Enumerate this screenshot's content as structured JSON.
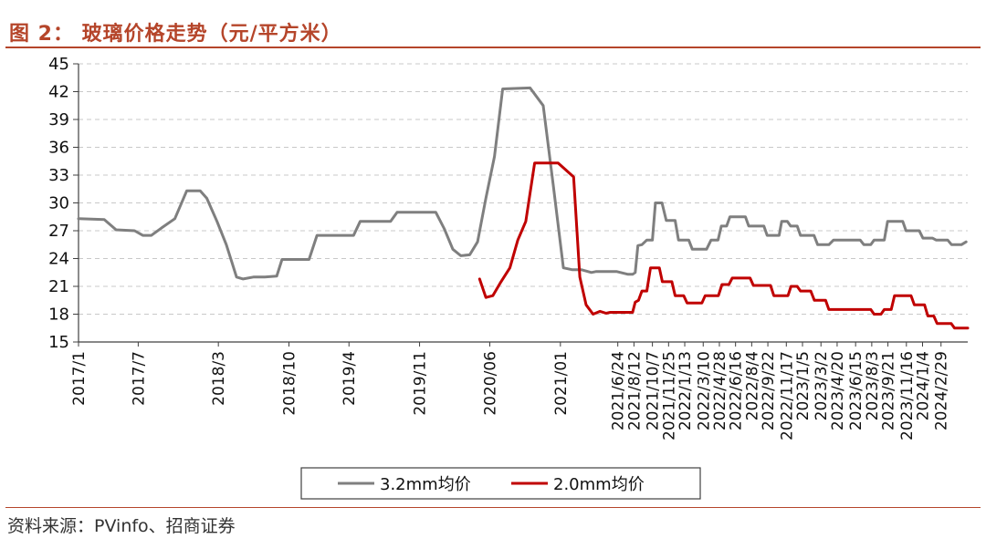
{
  "figure": {
    "title": "图 2：  玻璃价格走势（元/平方米）",
    "source": "资料来源：PVinfo、招商证券"
  },
  "colors": {
    "accent": "#b5452a",
    "series_gray": "#7f7f7f",
    "series_red": "#c00000",
    "grid": "#c8c8c8"
  },
  "chart_data": {
    "type": "line",
    "title": "玻璃价格走势（元/平方米）",
    "xlabel": "",
    "ylabel": "",
    "ylim": [
      15,
      45
    ],
    "yticks": [
      15,
      18,
      21,
      24,
      27,
      30,
      33,
      36,
      39,
      42,
      45
    ],
    "xlim": [
      "2017-01-01",
      "2024-05-20"
    ],
    "grid": "horizontal dashed",
    "legend_position": "bottom-center",
    "x_tick_labels": [
      {
        "label": "2017/1",
        "date": "2017-01-01"
      },
      {
        "label": "2017/7",
        "date": "2017-07-01"
      },
      {
        "label": "2018/3",
        "date": "2018-03-01"
      },
      {
        "label": "2018/10",
        "date": "2018-10-01"
      },
      {
        "label": "2019/4",
        "date": "2019-04-01"
      },
      {
        "label": "2019/11",
        "date": "2019-11-01"
      },
      {
        "label": "2020/06",
        "date": "2020-06-01"
      },
      {
        "label": "2021/01",
        "date": "2021-01-01"
      },
      {
        "label": "2021/6/24",
        "date": "2021-06-24"
      },
      {
        "label": "2021/8/12",
        "date": "2021-08-12"
      },
      {
        "label": "2021/10/7",
        "date": "2021-10-07"
      },
      {
        "label": "2021/11/25",
        "date": "2021-11-25"
      },
      {
        "label": "2022/1/13",
        "date": "2022-01-13"
      },
      {
        "label": "2022/3/10",
        "date": "2022-03-10"
      },
      {
        "label": "2022/4/28",
        "date": "2022-04-28"
      },
      {
        "label": "2022/6/16",
        "date": "2022-06-16"
      },
      {
        "label": "2022/8/4",
        "date": "2022-08-04"
      },
      {
        "label": "2022/9/22",
        "date": "2022-09-22"
      },
      {
        "label": "2022/11/17",
        "date": "2022-11-17"
      },
      {
        "label": "2023/1/5",
        "date": "2023-01-05"
      },
      {
        "label": "2023/3/2",
        "date": "2023-03-02"
      },
      {
        "label": "2023/4/20",
        "date": "2023-04-20"
      },
      {
        "label": "2023/6/15",
        "date": "2023-06-15"
      },
      {
        "label": "2023/8/3",
        "date": "2023-08-03"
      },
      {
        "label": "2023/9/21",
        "date": "2023-09-21"
      },
      {
        "label": "2023/11/16",
        "date": "2023-11-16"
      },
      {
        "label": "2024/1/4",
        "date": "2024-01-04"
      },
      {
        "label": "2024/2/29",
        "date": "2024-02-29"
      }
    ],
    "series": [
      {
        "name": "3.2mm均价",
        "color": "#7f7f7f",
        "points": [
          [
            "2017-01-01",
            28.3
          ],
          [
            "2017-03-20",
            28.2
          ],
          [
            "2017-04-25",
            27.1
          ],
          [
            "2017-06-20",
            27.0
          ],
          [
            "2017-07-15",
            26.5
          ],
          [
            "2017-08-10",
            26.5
          ],
          [
            "2017-09-10",
            27.3
          ],
          [
            "2017-10-20",
            28.3
          ],
          [
            "2017-11-25",
            31.3
          ],
          [
            "2018-01-05",
            31.3
          ],
          [
            "2018-01-25",
            30.5
          ],
          [
            "2018-02-25",
            28.0
          ],
          [
            "2018-03-25",
            25.5
          ],
          [
            "2018-04-25",
            22.0
          ],
          [
            "2018-05-15",
            21.8
          ],
          [
            "2018-06-15",
            22.0
          ],
          [
            "2018-07-20",
            22.0
          ],
          [
            "2018-08-25",
            22.1
          ],
          [
            "2018-09-10",
            23.9
          ],
          [
            "2018-12-01",
            23.9
          ],
          [
            "2018-12-25",
            26.5
          ],
          [
            "2019-04-15",
            26.5
          ],
          [
            "2019-05-05",
            28.0
          ],
          [
            "2019-08-05",
            28.0
          ],
          [
            "2019-08-25",
            29.0
          ],
          [
            "2019-12-20",
            29.0
          ],
          [
            "2020-01-15",
            27.2
          ],
          [
            "2020-02-10",
            25.0
          ],
          [
            "2020-03-05",
            24.3
          ],
          [
            "2020-04-01",
            24.4
          ],
          [
            "2020-04-25",
            25.8
          ],
          [
            "2020-05-20",
            30.5
          ],
          [
            "2020-06-15",
            35.0
          ],
          [
            "2020-07-10",
            42.3
          ],
          [
            "2020-10-01",
            42.4
          ],
          [
            "2020-11-10",
            40.5
          ],
          [
            "2020-12-10",
            32.0
          ],
          [
            "2021-01-10",
            23.0
          ],
          [
            "2021-02-05",
            22.8
          ],
          [
            "2021-03-05",
            22.8
          ],
          [
            "2021-04-05",
            22.5
          ],
          [
            "2021-04-20",
            22.6
          ],
          [
            "2021-06-20",
            22.6
          ],
          [
            "2021-07-25",
            22.3
          ],
          [
            "2021-08-08",
            22.3
          ],
          [
            "2021-08-16",
            22.5
          ],
          [
            "2021-08-24",
            25.4
          ],
          [
            "2021-09-05",
            25.5
          ],
          [
            "2021-09-20",
            26.0
          ],
          [
            "2021-10-07",
            26.0
          ],
          [
            "2021-10-16",
            30.0
          ],
          [
            "2021-11-05",
            30.0
          ],
          [
            "2021-11-18",
            28.1
          ],
          [
            "2021-12-15",
            28.1
          ],
          [
            "2021-12-25",
            26.0
          ],
          [
            "2022-01-10",
            26.0
          ],
          [
            "2022-01-25",
            26.0
          ],
          [
            "2022-02-05",
            25.0
          ],
          [
            "2022-03-20",
            25.0
          ],
          [
            "2022-04-03",
            26.0
          ],
          [
            "2022-04-24",
            26.0
          ],
          [
            "2022-05-04",
            27.5
          ],
          [
            "2022-05-20",
            27.5
          ],
          [
            "2022-05-30",
            28.5
          ],
          [
            "2022-07-16",
            28.5
          ],
          [
            "2022-07-26",
            27.5
          ],
          [
            "2022-09-10",
            27.5
          ],
          [
            "2022-09-20",
            26.5
          ],
          [
            "2022-10-26",
            26.5
          ],
          [
            "2022-11-03",
            28.0
          ],
          [
            "2022-11-20",
            28.0
          ],
          [
            "2022-11-30",
            27.5
          ],
          [
            "2022-12-20",
            27.5
          ],
          [
            "2022-12-30",
            26.5
          ],
          [
            "2023-02-09",
            26.5
          ],
          [
            "2023-02-20",
            25.5
          ],
          [
            "2023-03-26",
            25.5
          ],
          [
            "2023-04-09",
            26.0
          ],
          [
            "2023-06-29",
            26.0
          ],
          [
            "2023-07-10",
            25.5
          ],
          [
            "2023-07-31",
            25.5
          ],
          [
            "2023-08-10",
            26.0
          ],
          [
            "2023-09-10",
            26.0
          ],
          [
            "2023-09-20",
            28.0
          ],
          [
            "2023-11-05",
            28.0
          ],
          [
            "2023-11-15",
            27.0
          ],
          [
            "2023-12-25",
            27.0
          ],
          [
            "2024-01-05",
            26.2
          ],
          [
            "2024-02-03",
            26.2
          ],
          [
            "2024-02-14",
            26.0
          ],
          [
            "2024-03-20",
            26.0
          ],
          [
            "2024-04-01",
            25.5
          ],
          [
            "2024-05-01",
            25.5
          ],
          [
            "2024-05-15",
            25.8
          ]
        ]
      },
      {
        "name": "2.0mm均价",
        "color": "#c00000",
        "points": [
          [
            "2020-05-01",
            21.8
          ],
          [
            "2020-05-20",
            19.8
          ],
          [
            "2020-06-10",
            20.0
          ],
          [
            "2020-07-05",
            21.5
          ],
          [
            "2020-08-01",
            23.0
          ],
          [
            "2020-08-25",
            26.0
          ],
          [
            "2020-09-18",
            28.0
          ],
          [
            "2020-10-15",
            34.3
          ],
          [
            "2020-12-25",
            34.3
          ],
          [
            "2021-02-10",
            32.8
          ],
          [
            "2021-03-01",
            22.0
          ],
          [
            "2021-03-20",
            19.0
          ],
          [
            "2021-04-10",
            18.0
          ],
          [
            "2021-05-01",
            18.3
          ],
          [
            "2021-05-20",
            18.1
          ],
          [
            "2021-06-01",
            18.2
          ],
          [
            "2021-08-08",
            18.2
          ],
          [
            "2021-08-16",
            19.3
          ],
          [
            "2021-08-26",
            19.5
          ],
          [
            "2021-09-05",
            20.5
          ],
          [
            "2021-09-20",
            20.5
          ],
          [
            "2021-10-01",
            23.0
          ],
          [
            "2021-10-28",
            23.0
          ],
          [
            "2021-11-06",
            21.5
          ],
          [
            "2021-12-05",
            21.5
          ],
          [
            "2021-12-15",
            20.0
          ],
          [
            "2022-01-10",
            20.0
          ],
          [
            "2022-01-20",
            19.2
          ],
          [
            "2022-03-06",
            19.2
          ],
          [
            "2022-03-16",
            20.0
          ],
          [
            "2022-04-25",
            20.0
          ],
          [
            "2022-05-06",
            21.2
          ],
          [
            "2022-05-27",
            21.2
          ],
          [
            "2022-06-06",
            21.9
          ],
          [
            "2022-07-30",
            21.9
          ],
          [
            "2022-08-09",
            21.1
          ],
          [
            "2022-09-30",
            21.1
          ],
          [
            "2022-10-10",
            20.0
          ],
          [
            "2022-11-22",
            20.0
          ],
          [
            "2022-12-01",
            21.0
          ],
          [
            "2022-12-20",
            21.0
          ],
          [
            "2022-12-30",
            20.5
          ],
          [
            "2023-01-30",
            20.5
          ],
          [
            "2023-02-10",
            19.5
          ],
          [
            "2023-03-16",
            19.5
          ],
          [
            "2023-03-26",
            18.5
          ],
          [
            "2023-07-31",
            18.5
          ],
          [
            "2023-08-10",
            18.0
          ],
          [
            "2023-08-31",
            18.0
          ],
          [
            "2023-09-10",
            18.5
          ],
          [
            "2023-10-01",
            18.5
          ],
          [
            "2023-10-11",
            20.0
          ],
          [
            "2023-11-30",
            20.0
          ],
          [
            "2023-12-10",
            19.0
          ],
          [
            "2024-01-10",
            19.0
          ],
          [
            "2024-01-20",
            17.8
          ],
          [
            "2024-02-07",
            17.8
          ],
          [
            "2024-02-17",
            17.0
          ],
          [
            "2024-03-31",
            17.0
          ],
          [
            "2024-04-10",
            16.5
          ],
          [
            "2024-05-20",
            16.5
          ]
        ]
      }
    ]
  }
}
